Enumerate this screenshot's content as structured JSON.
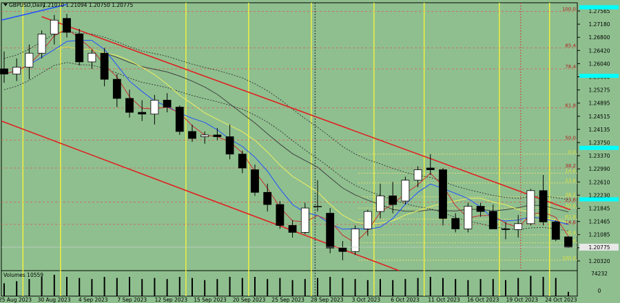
{
  "header": {
    "symbol": "GBPUSD,Daily",
    "ohlc": "1.21070 1.21094 1.20750 1.20775"
  },
  "volume": {
    "label": "Volumes 10559",
    "max_label": "74232",
    "zero_label": "0"
  },
  "colors": {
    "background": "#8fbf8f",
    "bull_body": "#ffffff",
    "bear_body": "#000000",
    "channel": "#e02020",
    "ma_blue": "#2050ff",
    "ma_red": "#c83030",
    "ma_yellow": "#f0f060",
    "ma_dark": "#404040",
    "vline": "#f0f040",
    "fib_line": "#c87060",
    "fib_yellow": "#e0e070",
    "cyan": "#00ffff",
    "price_tag": "#e8e8e8"
  },
  "chart_data": {
    "type": "candlestick",
    "y_range": [
      1.201,
      1.278
    ],
    "price_ticks": [
      "1.27565",
      "1.27180",
      "1.26800",
      "1.26420",
      "1.26040",
      "1.25660",
      "1.25275",
      "1.24895",
      "1.24515",
      "1.24135",
      "1.23750",
      "1.23370",
      "1.22990",
      "1.22610",
      "1.22230",
      "1.21845",
      "1.21465",
      "1.21085",
      "1.20705",
      "1.20320"
    ],
    "current_price": "1.20775",
    "date_labels": [
      "25 Aug 2023",
      "30 Aug 2023",
      "4 Sep 2023",
      "7 Sep 2023",
      "12 Sep 2023",
      "15 Sep 2023",
      "20 Sep 2023",
      "25 Sep 2023",
      "28 Sep 2023",
      "3 Oct 2023",
      "6 Oct 2023",
      "11 Oct 2023",
      "16 Oct 2023",
      "19 Oct 2023",
      "24 Oct 2023"
    ],
    "candles": [
      {
        "o": 1.259,
        "h": 1.264,
        "l": 1.255,
        "c": 1.2575
      },
      {
        "o": 1.2575,
        "h": 1.262,
        "l": 1.2555,
        "c": 1.2595
      },
      {
        "o": 1.2595,
        "h": 1.266,
        "l": 1.256,
        "c": 1.2635
      },
      {
        "o": 1.2635,
        "h": 1.27,
        "l": 1.262,
        "c": 1.269
      },
      {
        "o": 1.269,
        "h": 1.2745,
        "l": 1.266,
        "c": 1.273
      },
      {
        "o": 1.2735,
        "h": 1.2748,
        "l": 1.268,
        "c": 1.2695
      },
      {
        "o": 1.269,
        "h": 1.2705,
        "l": 1.26,
        "c": 1.261
      },
      {
        "o": 1.261,
        "h": 1.2645,
        "l": 1.259,
        "c": 1.2635
      },
      {
        "o": 1.2635,
        "h": 1.265,
        "l": 1.254,
        "c": 1.256
      },
      {
        "o": 1.256,
        "h": 1.2575,
        "l": 1.248,
        "c": 1.2505
      },
      {
        "o": 1.2505,
        "h": 1.253,
        "l": 1.245,
        "c": 1.2465
      },
      {
        "o": 1.2465,
        "h": 1.25,
        "l": 1.244,
        "c": 1.246
      },
      {
        "o": 1.246,
        "h": 1.2515,
        "l": 1.243,
        "c": 1.25
      },
      {
        "o": 1.25,
        "h": 1.252,
        "l": 1.2465,
        "c": 1.248
      },
      {
        "o": 1.248,
        "h": 1.2485,
        "l": 1.24,
        "c": 1.241
      },
      {
        "o": 1.241,
        "h": 1.243,
        "l": 1.238,
        "c": 1.239
      },
      {
        "o": 1.2395,
        "h": 1.241,
        "l": 1.2375,
        "c": 1.24
      },
      {
        "o": 1.24,
        "h": 1.242,
        "l": 1.2385,
        "c": 1.2395
      },
      {
        "o": 1.2395,
        "h": 1.243,
        "l": 1.233,
        "c": 1.2345
      },
      {
        "o": 1.2345,
        "h": 1.2355,
        "l": 1.229,
        "c": 1.2305
      },
      {
        "o": 1.23,
        "h": 1.2315,
        "l": 1.2225,
        "c": 1.2235
      },
      {
        "o": 1.2235,
        "h": 1.226,
        "l": 1.218,
        "c": 1.22
      },
      {
        "o": 1.22,
        "h": 1.221,
        "l": 1.213,
        "c": 1.214
      },
      {
        "o": 1.214,
        "h": 1.2155,
        "l": 1.2105,
        "c": 1.212
      },
      {
        "o": 1.212,
        "h": 1.2205,
        "l": 1.2115,
        "c": 1.219
      },
      {
        "o": 1.2195,
        "h": 1.227,
        "l": 1.218,
        "c": 1.2195
      },
      {
        "o": 1.2175,
        "h": 1.219,
        "l": 1.206,
        "c": 1.2075
      },
      {
        "o": 1.2075,
        "h": 1.2095,
        "l": 1.204,
        "c": 1.2065
      },
      {
        "o": 1.2065,
        "h": 1.214,
        "l": 1.2055,
        "c": 1.213
      },
      {
        "o": 1.213,
        "h": 1.2185,
        "l": 1.211,
        "c": 1.218
      },
      {
        "o": 1.218,
        "h": 1.226,
        "l": 1.216,
        "c": 1.2225
      },
      {
        "o": 1.2225,
        "h": 1.2265,
        "l": 1.2175,
        "c": 1.22
      },
      {
        "o": 1.221,
        "h": 1.228,
        "l": 1.22,
        "c": 1.227
      },
      {
        "o": 1.227,
        "h": 1.231,
        "l": 1.225,
        "c": 1.23
      },
      {
        "o": 1.2305,
        "h": 1.2345,
        "l": 1.2285,
        "c": 1.23
      },
      {
        "o": 1.23,
        "h": 1.2305,
        "l": 1.214,
        "c": 1.216
      },
      {
        "o": 1.216,
        "h": 1.2175,
        "l": 1.212,
        "c": 1.213
      },
      {
        "o": 1.213,
        "h": 1.2205,
        "l": 1.212,
        "c": 1.2195
      },
      {
        "o": 1.2195,
        "h": 1.2205,
        "l": 1.2165,
        "c": 1.218
      },
      {
        "o": 1.218,
        "h": 1.22,
        "l": 1.213,
        "c": 1.213
      },
      {
        "o": 1.213,
        "h": 1.215,
        "l": 1.21,
        "c": 1.2128
      },
      {
        "o": 1.2128,
        "h": 1.217,
        "l": 1.2105,
        "c": 1.2145
      },
      {
        "o": 1.2145,
        "h": 1.2245,
        "l": 1.214,
        "c": 1.224
      },
      {
        "o": 1.224,
        "h": 1.2285,
        "l": 1.214,
        "c": 1.215
      },
      {
        "o": 1.215,
        "h": 1.2155,
        "l": 1.2095,
        "c": 1.21
      },
      {
        "o": 1.2107,
        "h": 1.2109,
        "l": 1.2075,
        "c": 1.2077
      }
    ],
    "volumes": [
      0.6,
      0.7,
      0.8,
      0.9,
      1.0,
      0.9,
      0.85,
      0.8,
      0.9,
      0.85,
      0.9,
      0.8,
      0.85,
      0.8,
      0.9,
      0.85,
      0.75,
      0.8,
      0.9,
      0.85,
      0.9,
      0.8,
      0.85,
      0.75,
      0.8,
      0.85,
      0.9,
      0.85,
      0.8,
      0.75,
      0.8,
      0.75,
      0.8,
      0.85,
      0.9,
      0.85,
      0.8,
      0.75,
      0.8,
      0.8,
      0.75,
      0.85,
      0.95,
      0.9,
      0.85,
      0.2
    ],
    "fib_levels": [
      {
        "label": "100.0",
        "price": 1.2755,
        "color": "#c87060"
      },
      {
        "label": "85.4",
        "price": 1.265,
        "color": "#c87060"
      },
      {
        "label": "76.4",
        "price": 1.259,
        "color": "#c87060"
      },
      {
        "label": "61.8",
        "price": 1.2478,
        "color": "#c87060"
      },
      {
        "label": "50.0",
        "price": 1.2385,
        "color": "#c87060"
      },
      {
        "label": "38.2",
        "price": 1.2305,
        "color": "#c87060"
      },
      {
        "label": "23.6",
        "price": 1.2207,
        "color": "#c87060"
      },
      {
        "label": "14.6",
        "price": 1.2143,
        "color": "#c87060"
      }
    ],
    "fib_levels_2": [
      {
        "label": "0.0",
        "price": 1.2345
      },
      {
        "label": "14.6",
        "price": 1.229
      },
      {
        "label": "23.6",
        "price": 1.2262
      },
      {
        "label": "38.2",
        "price": 1.2222
      },
      {
        "label": "50.0",
        "price": 1.219
      },
      {
        "label": "61.8",
        "price": 1.2158
      },
      {
        "label": "76.4",
        "price": 1.2113
      },
      {
        "label": "85.4",
        "price": 1.209
      },
      {
        "label": "100.0",
        "price": 1.204
      }
    ]
  }
}
